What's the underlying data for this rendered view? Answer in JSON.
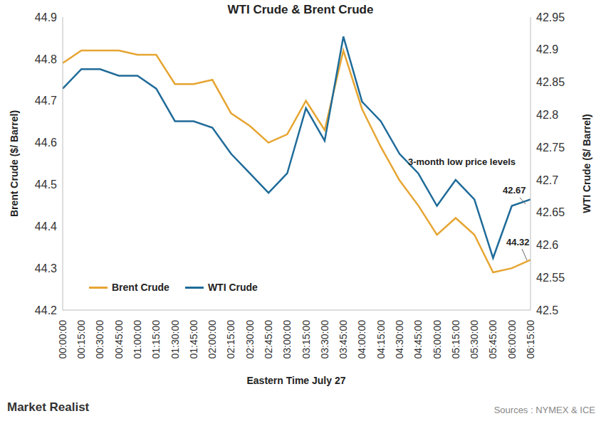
{
  "chart_data": {
    "type": "line",
    "title": "WTI Crude & Brent Crude",
    "x_label": "Eastern Time July 27",
    "y_label": "Brent Crude ($/ Barrel)",
    "y2_label": "WTI Crude ($/ Barrel)",
    "categories": [
      "00:00:00",
      "00:15:00",
      "00:30:00",
      "00:45:00",
      "01:00:00",
      "01:15:00",
      "01:30:00",
      "01:45:00",
      "02:00:00",
      "02:15:00",
      "02:30:00",
      "02:45:00",
      "03:00:00",
      "03:15:00",
      "03:30:00",
      "03:45:00",
      "04:00:00",
      "04:15:00",
      "04:30:00",
      "04:45:00",
      "05:00:00",
      "05:15:00",
      "05:30:00",
      "05:45:00",
      "06:00:00",
      "06:15:00"
    ],
    "series": [
      {
        "name": "Brent Crude",
        "color": "#e6a532",
        "values": [
          44.79,
          44.82,
          44.82,
          44.82,
          44.81,
          44.81,
          44.74,
          44.74,
          44.75,
          44.67,
          44.64,
          44.6,
          44.62,
          44.7,
          44.63,
          44.82,
          44.68,
          44.59,
          44.51,
          44.45,
          44.38,
          44.42,
          44.38,
          44.29,
          44.3,
          44.32
        ]
      },
      {
        "name": "WTI Crude",
        "color": "#1f6b99",
        "axis": "y2",
        "values": [
          42.84,
          42.87,
          42.87,
          42.86,
          42.86,
          42.84,
          42.79,
          42.79,
          42.78,
          42.74,
          42.71,
          42.68,
          42.71,
          42.81,
          42.76,
          42.92,
          42.82,
          42.79,
          42.74,
          42.71,
          42.66,
          42.7,
          42.67,
          42.58,
          42.66,
          42.67
        ]
      }
    ],
    "ylim": [
      44.2,
      44.9
    ],
    "yticks": [
      44.2,
      44.3,
      44.4,
      44.5,
      44.6,
      44.7,
      44.8,
      44.9
    ],
    "y2lim": [
      42.5,
      42.95
    ],
    "y2ticks": [
      42.5,
      42.55,
      42.6,
      42.65,
      42.7,
      42.75,
      42.8,
      42.85,
      42.9,
      42.95
    ],
    "grid": false,
    "legend": "lower left",
    "annotations": [
      "3-month low price levels",
      "42.67",
      "44.32"
    ],
    "source": "Sources : NYMEX & ICE",
    "brand": "Market Realist"
  }
}
